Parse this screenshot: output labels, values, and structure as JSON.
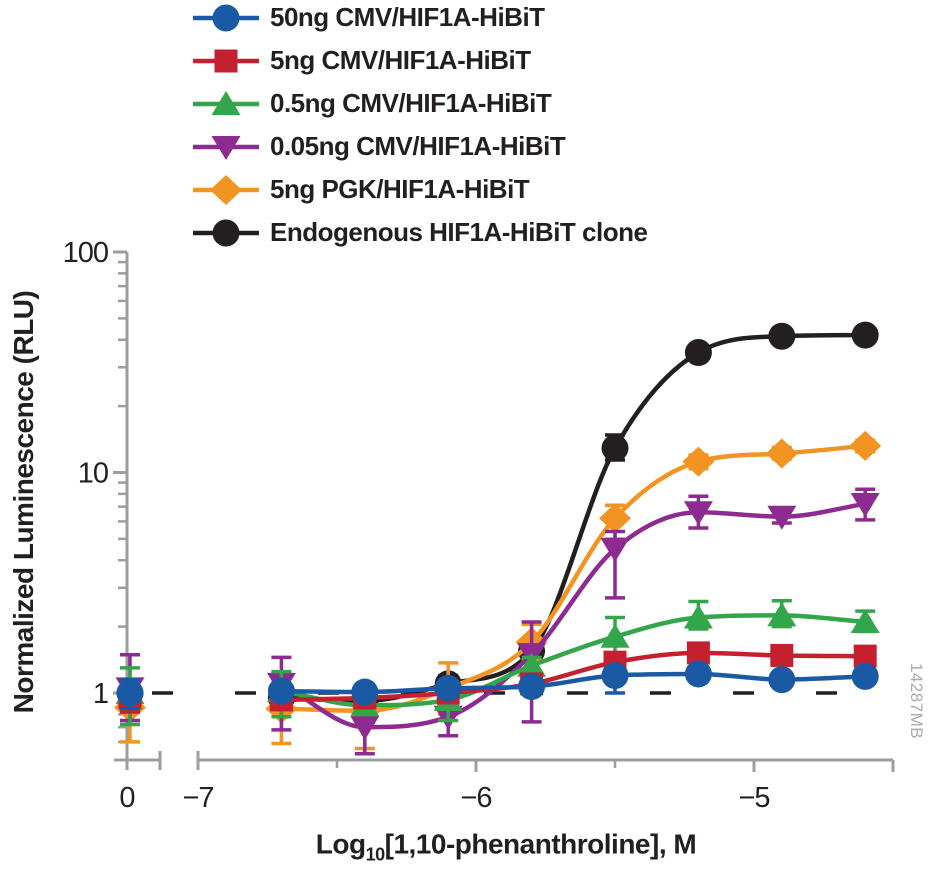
{
  "figure": {
    "watermark": "14287MB",
    "watermark_color": "#A9ABAE",
    "background": "#ffffff"
  },
  "chart_data": {
    "type": "line",
    "title": "",
    "xlabel": {
      "prefix": "Log",
      "sub": "10",
      "rest": "[1,10-phenanthroline], M"
    },
    "ylabel": "Normalized Luminescence (RLU)",
    "legend_position": "top",
    "axis_color": "#9B9DA0",
    "text_color": "#231F20",
    "x_axis": {
      "scale": "linear (log10 of molar concentration), broken axis between control and -7",
      "tick_labels": [
        "0",
        "−7",
        "−6",
        "−5"
      ],
      "tick_values": [
        null,
        -7,
        -6,
        -5
      ],
      "minor_tick_values": [
        -6.5,
        -5.5
      ],
      "range": [
        -7,
        -4.5
      ],
      "control_label": "0"
    },
    "y_axis": {
      "scale": "log10",
      "tick_labels": [
        "1",
        "10",
        "100"
      ],
      "tick_values": [
        1,
        10,
        100
      ],
      "minor_tick_values": [
        90,
        80,
        70,
        60,
        50,
        40,
        30,
        20,
        9,
        8,
        7,
        6,
        5,
        4,
        3,
        2,
        0.9,
        0.8,
        0.7,
        0.6
      ],
      "range": [
        0.55,
        100
      ]
    },
    "baseline": {
      "value": 1,
      "style": "dashed",
      "color": "#231F20"
    },
    "x": [
      null,
      -6.7,
      -6.4,
      -6.1,
      -5.8,
      -5.5,
      -5.2,
      -4.9,
      -4.6
    ],
    "series": [
      {
        "name": "50ng CMV/HIF1A-HiBiT",
        "marker": "circle",
        "color": "#1A5AA5",
        "values": [
          1.0,
          1.02,
          1.01,
          1.05,
          1.07,
          1.2,
          1.22,
          1.15,
          1.19
        ],
        "err_lo": [
          0.85,
          0.93,
          0.94,
          0.97,
          1.0,
          1.0,
          1.14,
          1.08,
          1.12
        ],
        "err_hi": [
          1.15,
          1.1,
          1.08,
          1.12,
          1.14,
          1.28,
          1.3,
          1.22,
          1.26
        ]
      },
      {
        "name": "5ng CMV/HIF1A-HiBiT",
        "marker": "square",
        "color": "#C42130",
        "values": [
          0.95,
          0.93,
          0.95,
          1.0,
          1.1,
          1.38,
          1.52,
          1.48,
          1.47
        ],
        "err_lo": [
          0.82,
          0.85,
          0.88,
          0.93,
          1.02,
          1.25,
          1.43,
          1.4,
          1.39
        ],
        "err_hi": [
          1.08,
          1.01,
          1.02,
          1.08,
          1.18,
          1.51,
          1.62,
          1.57,
          1.55
        ]
      },
      {
        "name": "0.5ng CMV/HIF1A-HiBiT",
        "marker": "triangle-up",
        "color": "#33A64C",
        "values": [
          1.0,
          1.02,
          0.88,
          0.93,
          1.33,
          1.8,
          2.2,
          2.25,
          2.1
        ],
        "err_lo": [
          0.72,
          0.78,
          0.8,
          0.75,
          1.2,
          1.5,
          1.95,
          2.0,
          1.9
        ],
        "err_hi": [
          1.3,
          1.25,
          0.97,
          1.05,
          1.45,
          2.2,
          2.6,
          2.62,
          2.35
        ]
      },
      {
        "name": "0.05ng CMV/HIF1A-HiBiT",
        "marker": "triangle-down",
        "color": "#8E2B90",
        "values": [
          1.05,
          1.1,
          0.7,
          0.78,
          1.5,
          4.5,
          6.6,
          6.3,
          7.2
        ],
        "err_lo": [
          0.75,
          0.68,
          0.53,
          0.64,
          0.74,
          2.7,
          5.6,
          5.9,
          6.1
        ],
        "err_hi": [
          1.49,
          1.45,
          0.93,
          1.0,
          2.1,
          5.4,
          7.8,
          6.8,
          8.4
        ]
      },
      {
        "name": "5ng PGK/HIF1A-HiBiT",
        "marker": "diamond",
        "color": "#F29422",
        "values": [
          0.86,
          0.85,
          0.83,
          1.05,
          1.7,
          6.2,
          11.2,
          12.2,
          13.2
        ],
        "err_lo": [
          0.6,
          0.59,
          0.56,
          0.8,
          1.4,
          5.0,
          10.4,
          11.5,
          12.4
        ],
        "err_hi": [
          1.1,
          1.05,
          0.98,
          1.37,
          2.05,
          7.1,
          12.0,
          13.0,
          14.0
        ]
      },
      {
        "name": "Endogenous HIF1A-HiBiT clone",
        "marker": "circle",
        "color": "#231F20",
        "values": [
          1.0,
          0.95,
          0.92,
          1.1,
          1.55,
          12.9,
          35.0,
          41.5,
          42.0
        ],
        "err_lo": [
          0.88,
          0.87,
          0.84,
          1.0,
          1.4,
          11.4,
          33.0,
          39.5,
          40.0
        ],
        "err_hi": [
          1.12,
          1.03,
          1.0,
          1.2,
          1.7,
          14.8,
          37.0,
          43.5,
          44.0
        ]
      }
    ]
  }
}
